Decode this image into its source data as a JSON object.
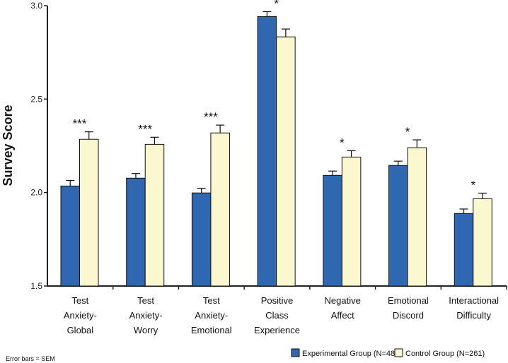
{
  "chart_data": {
    "type": "bar",
    "ylabel": "Survey Score",
    "ylim": [
      1.5,
      3.0
    ],
    "yticks": [
      "1.5",
      "2.0",
      "2.5",
      "3.0"
    ],
    "grid": false,
    "legend_placement": "bottom-right",
    "categories": [
      [
        "Test",
        "Anxiety-",
        "Global"
      ],
      [
        "Test",
        "Anxiety-",
        "Worry"
      ],
      [
        "Test",
        "Anxiety-",
        "Emotional"
      ],
      [
        "Positive",
        "Class",
        "Experience"
      ],
      [
        "Negative",
        "Affect"
      ],
      [
        "Emotional",
        "Discord"
      ],
      [
        "Interactional",
        "Difficulty"
      ]
    ],
    "series": [
      {
        "name": "Experimental Group (N=488)",
        "color": "#2f67b1",
        "values": [
          2.035,
          2.077,
          1.998,
          2.942,
          2.092,
          2.145,
          1.888
        ],
        "sem": [
          0.03,
          0.025,
          0.025,
          0.026,
          0.023,
          0.023,
          0.024
        ]
      },
      {
        "name": "Control Group (N=261)",
        "color": "#fbf8d0",
        "values": [
          2.285,
          2.258,
          2.319,
          2.833,
          2.19,
          2.24,
          1.967
        ],
        "sem": [
          0.04,
          0.038,
          0.042,
          0.042,
          0.034,
          0.042,
          0.03
        ]
      }
    ],
    "significance": [
      "***",
      "***",
      "***",
      "*",
      "*",
      "*",
      "*"
    ],
    "annotation": "Error bars = SEM"
  }
}
